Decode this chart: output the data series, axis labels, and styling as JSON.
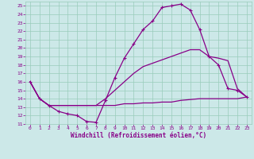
{
  "title": "Windchill (Refroidissement éolien,°C)",
  "bg_color": "#cce8e8",
  "line_color": "#880088",
  "grid_color": "#99ccbb",
  "xlim": [
    -0.5,
    23.5
  ],
  "ylim": [
    11,
    25.5
  ],
  "xtick_labels": [
    "0",
    "1",
    "2",
    "3",
    "4",
    "5",
    "6",
    "7",
    "8",
    "9",
    "10",
    "11",
    "12",
    "13",
    "14",
    "15",
    "16",
    "17",
    "18",
    "19",
    "20",
    "21",
    "22",
    "23"
  ],
  "xticks": [
    0,
    1,
    2,
    3,
    4,
    5,
    6,
    7,
    8,
    9,
    10,
    11,
    12,
    13,
    14,
    15,
    16,
    17,
    18,
    19,
    20,
    21,
    22,
    23
  ],
  "yticks": [
    11,
    12,
    13,
    14,
    15,
    16,
    17,
    18,
    19,
    20,
    21,
    22,
    23,
    24,
    25
  ],
  "line1_x": [
    0,
    1,
    2,
    3,
    4,
    5,
    6,
    7,
    8,
    9,
    10,
    11,
    12,
    13,
    14,
    15,
    16,
    17,
    18,
    19,
    20,
    21,
    22,
    23
  ],
  "line1_y": [
    16.0,
    14.0,
    13.2,
    12.5,
    12.2,
    12.0,
    11.3,
    11.2,
    13.8,
    16.5,
    18.8,
    20.5,
    22.2,
    23.2,
    24.8,
    25.0,
    25.2,
    24.5,
    22.2,
    19.0,
    18.0,
    15.2,
    15.0,
    14.2
  ],
  "line2_x": [
    0,
    1,
    2,
    3,
    4,
    5,
    6,
    7,
    8,
    9,
    10,
    11,
    12,
    13,
    14,
    15,
    16,
    17,
    18,
    19,
    20,
    21,
    22,
    23
  ],
  "line2_y": [
    16.0,
    14.0,
    13.2,
    13.2,
    13.2,
    13.2,
    13.2,
    13.2,
    13.2,
    13.2,
    13.4,
    13.4,
    13.5,
    13.5,
    13.6,
    13.6,
    13.8,
    13.9,
    14.0,
    14.0,
    14.0,
    14.0,
    14.0,
    14.2
  ],
  "line3_x": [
    0,
    1,
    2,
    3,
    4,
    5,
    6,
    7,
    8,
    9,
    10,
    11,
    12,
    13,
    14,
    15,
    16,
    17,
    18,
    19,
    20,
    21,
    22,
    23
  ],
  "line3_y": [
    16.0,
    14.0,
    13.2,
    13.2,
    13.2,
    13.2,
    13.2,
    13.2,
    14.0,
    15.0,
    16.0,
    17.0,
    17.8,
    18.2,
    18.6,
    19.0,
    19.4,
    19.8,
    19.8,
    19.0,
    18.8,
    18.5,
    15.2,
    14.2
  ]
}
